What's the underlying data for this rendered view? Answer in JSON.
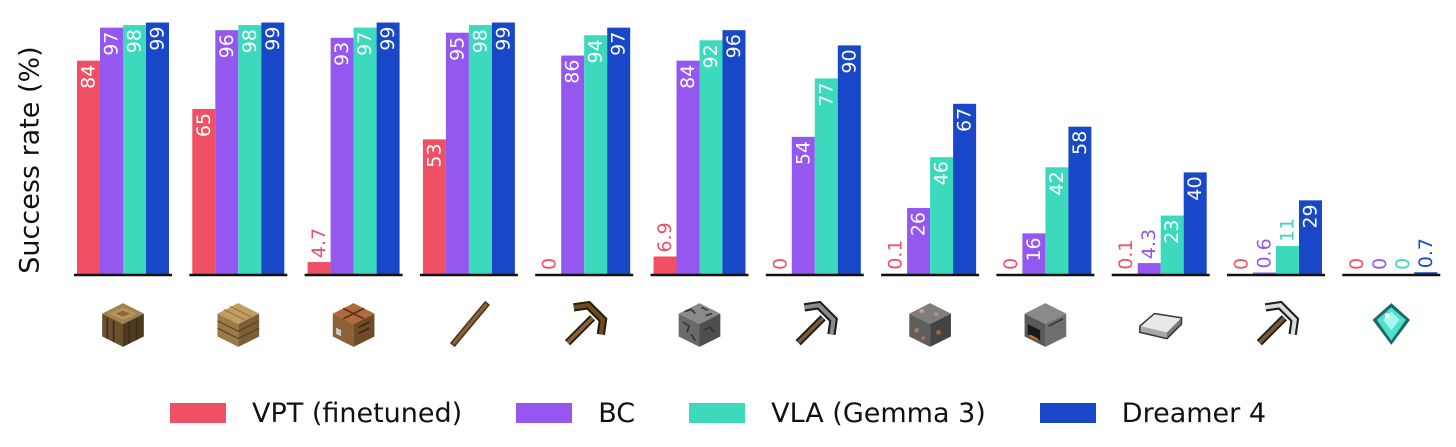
{
  "chart_data": {
    "type": "bar",
    "title": "",
    "xlabel": "",
    "ylabel": "Success rate (%)",
    "ylim": [
      0,
      100
    ],
    "grid": false,
    "legend_position": "bottom",
    "categories": [
      "log",
      "planks",
      "crafting table",
      "stick",
      "wooden pickaxe",
      "cobblestone",
      "stone pickaxe",
      "iron ore",
      "furnace",
      "iron ingot",
      "iron pickaxe",
      "diamond"
    ],
    "category_icons": [
      "log-icon",
      "planks-icon",
      "crafting-table-icon",
      "stick-icon",
      "wooden-pickaxe-icon",
      "cobblestone-icon",
      "stone-pickaxe-icon",
      "iron-ore-icon",
      "furnace-icon",
      "iron-ingot-icon",
      "iron-pickaxe-icon",
      "diamond-icon"
    ],
    "series": [
      {
        "name": "VPT (finetuned)",
        "color": "#f05064",
        "values": [
          84,
          65,
          4.7,
          53,
          0,
          6.9,
          0,
          0.1,
          0,
          0.1,
          0,
          0
        ],
        "labels": [
          "84",
          "65",
          "4.7",
          "53",
          "0",
          "6.9",
          "0",
          "0.1",
          "0",
          "0.1",
          "0",
          "0"
        ]
      },
      {
        "name": "BC",
        "color": "#9457f0",
        "values": [
          97,
          96,
          93,
          95,
          86,
          84,
          54,
          26,
          16,
          4.3,
          0.6,
          0
        ],
        "labels": [
          "97",
          "96",
          "93",
          "95",
          "86",
          "84",
          "54",
          "26",
          "16",
          "4.3",
          "0.6",
          "0"
        ]
      },
      {
        "name": "VLA (Gemma 3)",
        "color": "#3dd9bd",
        "values": [
          98,
          98,
          97,
          98,
          94,
          92,
          77,
          46,
          42,
          23,
          11,
          0
        ],
        "labels": [
          "98",
          "98",
          "97",
          "98",
          "94",
          "92",
          "77",
          "46",
          "42",
          "23",
          "11",
          "0"
        ]
      },
      {
        "name": "Dreamer 4",
        "color": "#1848c8",
        "values": [
          99,
          99,
          99,
          99,
          97,
          96,
          90,
          67,
          58,
          40,
          29,
          0.7
        ],
        "labels": [
          "99",
          "99",
          "99",
          "99",
          "97",
          "96",
          "90",
          "67",
          "58",
          "40",
          "29",
          "0.7"
        ]
      }
    ]
  }
}
